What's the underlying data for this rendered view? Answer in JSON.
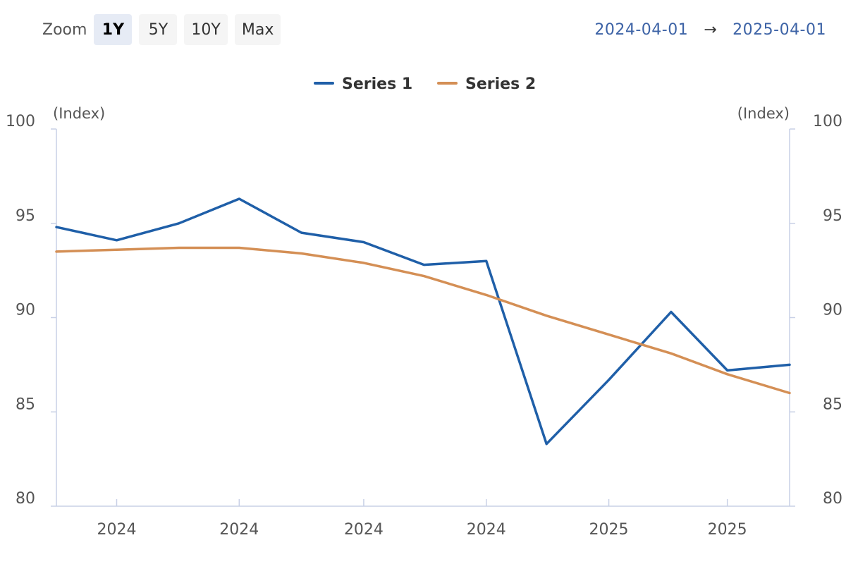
{
  "zoom": {
    "label": "Zoom",
    "buttons": [
      {
        "label": "1Y",
        "active": true
      },
      {
        "label": "5Y",
        "active": false
      },
      {
        "label": "10Y",
        "active": false
      },
      {
        "label": "Max",
        "active": false
      }
    ]
  },
  "range": {
    "from": "2024-04-01",
    "arrow": "→",
    "to": "2025-04-01"
  },
  "colors": {
    "series1": "#1f5fa8",
    "series2": "#d48f55",
    "axis": "#c8d0e6",
    "range_text": "#3d63a6"
  },
  "chart_data": {
    "type": "line",
    "title": "",
    "legend": {
      "placement": "top-center"
    },
    "grid": false,
    "y_left": {
      "label": "(Index)",
      "ylim": [
        80,
        100
      ],
      "ticks": [
        80,
        85,
        90,
        95,
        100
      ]
    },
    "y_right": {
      "label": "(Index)",
      "ylim": [
        80,
        100
      ],
      "ticks": [
        80,
        85,
        90,
        95,
        100
      ]
    },
    "x": {
      "range": [
        "2024-04-01",
        "2025-04-01"
      ],
      "tick_dates": [
        "2024-05-01",
        "2024-07-01",
        "2024-09-01",
        "2024-11-01",
        "2025-01-01",
        "2025-03-01"
      ],
      "tick_labels": [
        "2024",
        "2024",
        "2024",
        "2024",
        "2025",
        "2025"
      ]
    },
    "series": [
      {
        "name": "Series 1",
        "points": [
          [
            "2024-04-01",
            94.8
          ],
          [
            "2024-05-01",
            94.1
          ],
          [
            "2024-06-01",
            95.0
          ],
          [
            "2024-07-01",
            96.3
          ],
          [
            "2024-08-01",
            94.5
          ],
          [
            "2024-09-01",
            94.0
          ],
          [
            "2024-10-01",
            92.8
          ],
          [
            "2024-11-01",
            93.0
          ],
          [
            "2024-12-01",
            83.3
          ],
          [
            "2025-01-01",
            86.7
          ],
          [
            "2025-02-01",
            90.3
          ],
          [
            "2025-03-01",
            87.2
          ],
          [
            "2025-04-01",
            87.5
          ]
        ]
      },
      {
        "name": "Series 2",
        "points": [
          [
            "2024-04-01",
            93.5
          ],
          [
            "2024-05-01",
            93.6
          ],
          [
            "2024-06-01",
            93.7
          ],
          [
            "2024-07-01",
            93.7
          ],
          [
            "2024-08-01",
            93.4
          ],
          [
            "2024-09-01",
            92.9
          ],
          [
            "2024-10-01",
            92.2
          ],
          [
            "2024-11-01",
            91.2
          ],
          [
            "2024-12-01",
            90.1
          ],
          [
            "2025-01-01",
            89.1
          ],
          [
            "2025-02-01",
            88.1
          ],
          [
            "2025-03-01",
            87.0
          ],
          [
            "2025-04-01",
            86.0
          ]
        ]
      }
    ]
  }
}
